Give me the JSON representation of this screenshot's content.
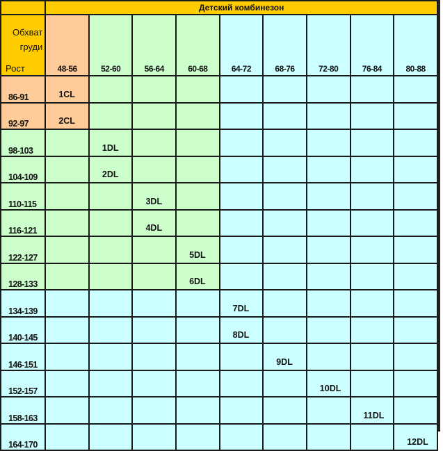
{
  "title": "Детский комбинезон",
  "corner": {
    "chest_label": "Обхват груди",
    "height_label": "Рост"
  },
  "columns": [
    "48-56",
    "52-60",
    "56-64",
    "60-68",
    "64-72",
    "68-76",
    "72-80",
    "76-84",
    "80-88"
  ],
  "rows": [
    {
      "height": "86-91",
      "col": 0,
      "size": "1CL"
    },
    {
      "height": "92-97",
      "col": 0,
      "size": "2CL"
    },
    {
      "height": "98-103",
      "col": 1,
      "size": "1DL"
    },
    {
      "height": "104-109",
      "col": 1,
      "size": "2DL"
    },
    {
      "height": "110-115",
      "col": 2,
      "size": "3DL"
    },
    {
      "height": "116-121",
      "col": 2,
      "size": "4DL"
    },
    {
      "height": "122-127",
      "col": 3,
      "size": "5DL"
    },
    {
      "height": "128-133",
      "col": 3,
      "size": "6DL"
    },
    {
      "height": "134-139",
      "col": 4,
      "size": "7DL"
    },
    {
      "height": "140-145",
      "col": 4,
      "size": "8DL"
    },
    {
      "height": "146-151",
      "col": 5,
      "size": "9DL"
    },
    {
      "height": "152-157",
      "col": 6,
      "size": "10DL"
    },
    {
      "height": "158-163",
      "col": 7,
      "size": "11DL"
    },
    {
      "height": "164-170",
      "col": 8,
      "size": "12DL"
    }
  ],
  "colors": {
    "header": "#ffcc00",
    "peach": "#ffcc99",
    "green": "#ccffcc",
    "cyan": "#ccffff"
  }
}
